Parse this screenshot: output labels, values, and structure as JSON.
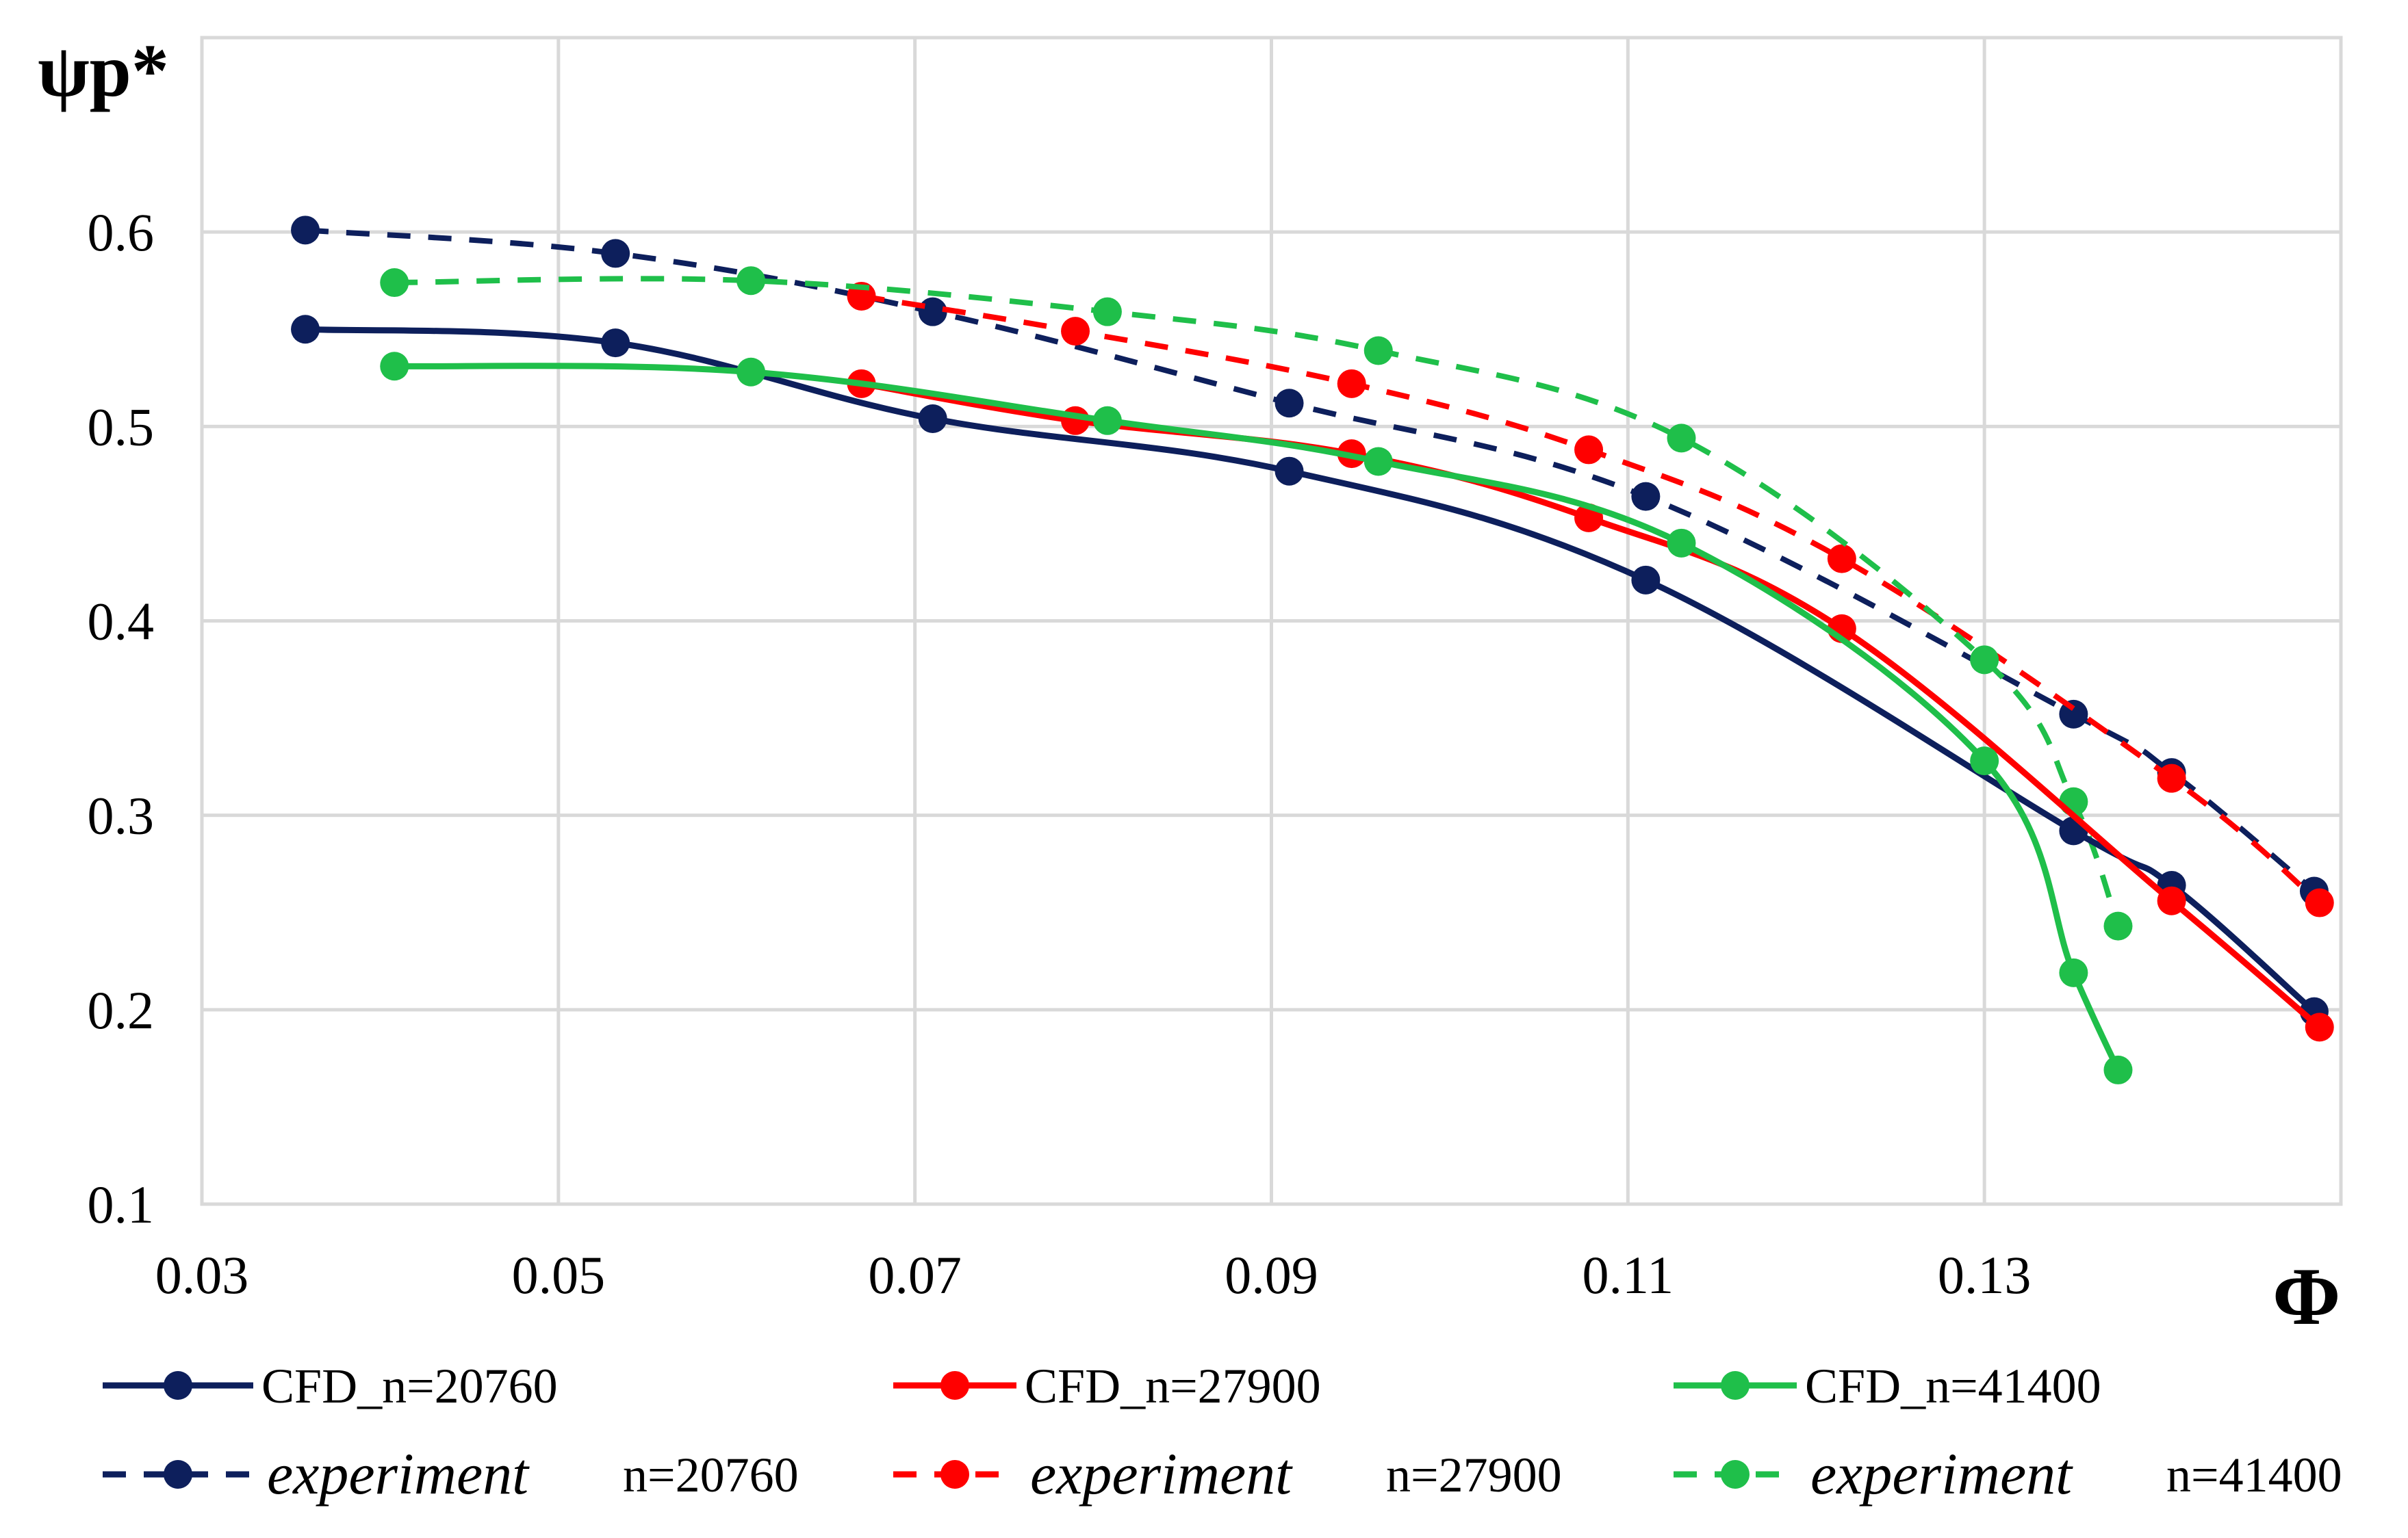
{
  "chart_data": {
    "type": "line",
    "ylabel": "ψp*",
    "xlabel": "Φ",
    "xlim": [
      0.03,
      0.15
    ],
    "ylim": [
      0.1,
      0.6
    ],
    "x_ticks": [
      0.03,
      0.05,
      0.07,
      0.09,
      0.11,
      0.13
    ],
    "x_tick_labels": [
      "0.03",
      "0.05",
      "0.07",
      "0.09",
      "0.11",
      "0.13"
    ],
    "y_ticks": [
      0.1,
      0.2,
      0.3,
      0.4,
      0.5,
      0.6
    ],
    "y_tick_labels": [
      "0.1",
      "0.2",
      "0.3",
      "0.4",
      "0.5",
      "0.6"
    ],
    "grid": true,
    "legend_position": "bottom",
    "series": [
      {
        "name": "CFD_n=20760",
        "legend_prefix": "CFD_",
        "legend_suffix": "n=20760",
        "style": "solid",
        "color": "#0d1f5c",
        "x": [
          0.0358,
          0.0532,
          0.071,
          0.091,
          0.111,
          0.135,
          0.1405,
          0.1485
        ],
        "y": [
          0.55,
          0.543,
          0.504,
          0.477,
          0.421,
          0.292,
          0.264,
          0.199
        ]
      },
      {
        "name": "CFD_n=27900",
        "legend_prefix": "CFD_",
        "legend_suffix": "n=27900",
        "style": "solid",
        "color": "#ff0000",
        "x": [
          0.067,
          0.079,
          0.0945,
          0.1078,
          0.122,
          0.1405,
          0.1488
        ],
        "y": [
          0.522,
          0.503,
          0.486,
          0.453,
          0.396,
          0.256,
          0.191
        ]
      },
      {
        "name": "CFD_n=41400",
        "legend_prefix": "CFD_",
        "legend_suffix": "n=41400",
        "style": "solid",
        "color": "#1fbf4a",
        "x": [
          0.0408,
          0.0608,
          0.0808,
          0.096,
          0.113,
          0.13,
          0.135,
          0.1375
        ],
        "y": [
          0.531,
          0.528,
          0.503,
          0.482,
          0.44,
          0.328,
          0.219,
          0.169
        ]
      },
      {
        "name": "experiment n=20760",
        "legend_prefix": "experiment",
        "legend_suffix": "n=20760",
        "style": "dashed",
        "color": "#0d1f5c",
        "x": [
          0.0358,
          0.0532,
          0.071,
          0.091,
          0.111,
          0.135,
          0.1405,
          0.1485
        ],
        "y": [
          0.601,
          0.589,
          0.559,
          0.512,
          0.464,
          0.352,
          0.322,
          0.261
        ]
      },
      {
        "name": "experiment n=27900",
        "legend_prefix": "experiment",
        "legend_suffix": "n=27900",
        "style": "dashed",
        "color": "#ff0000",
        "x": [
          0.067,
          0.079,
          0.0945,
          0.1078,
          0.122,
          0.1405,
          0.1488
        ],
        "y": [
          0.567,
          0.549,
          0.522,
          0.488,
          0.432,
          0.319,
          0.255
        ]
      },
      {
        "name": "experiment n=41400",
        "legend_prefix": "experiment",
        "legend_suffix": "n=41400",
        "style": "dashed",
        "color": "#1fbf4a",
        "x": [
          0.0408,
          0.0608,
          0.0808,
          0.096,
          0.113,
          0.13,
          0.135,
          0.1375
        ],
        "y": [
          0.574,
          0.575,
          0.559,
          0.539,
          0.494,
          0.38,
          0.307,
          0.243
        ]
      }
    ]
  }
}
